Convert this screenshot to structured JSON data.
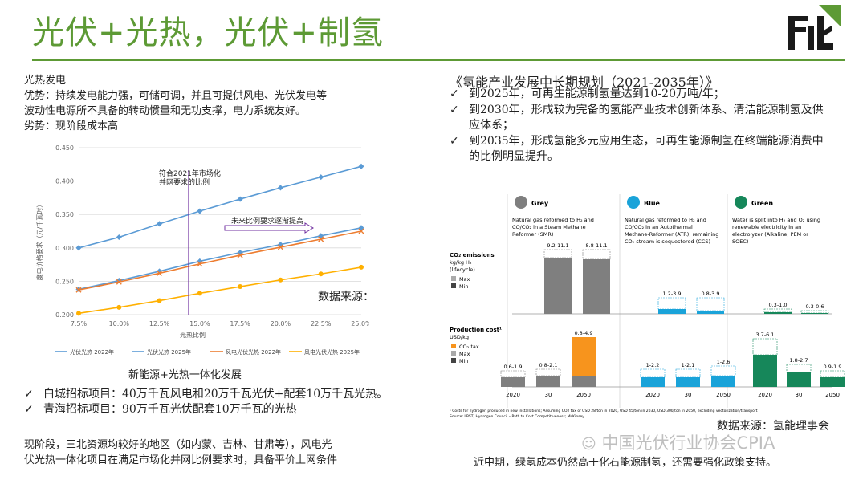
{
  "header": {
    "title": "光伏+光热，光伏+制氢"
  },
  "left": {
    "section_title": "光热发电",
    "advantage": "优势：持续发电能力强，可储可调，并且可提供风电、光伏发电等",
    "advantage2": "波动性电源所不具备的转动惯量和无功支撑，电力系统友好。",
    "disadvantage": "劣势：现阶段成本高",
    "chart_caption": "新能源+光热一体化发展",
    "bullets": [
      "白城招标项目：40万千瓦风电和20万千瓦光伏+配套10万千瓦光热。",
      "青海招标项目：90万千瓦光伏配套10万千瓦的光热"
    ],
    "conclusion1": "现阶段，三北资源均较好的地区（如内蒙、吉林、甘肃等），风电光",
    "conclusion2": "伏光热一体化项目在满足市场化并网比例要求时，具备平价上网条件"
  },
  "chart_data": {
    "type": "line",
    "xlabel": "光热比例",
    "ylabel": "度电价格要求（元/千瓦时）",
    "x": [
      "7.5%",
      "10.0%",
      "12.5%",
      "15.0%",
      "17.5%",
      "20.0%",
      "22.5%",
      "25.0%"
    ],
    "yticks": [
      "0.200",
      "0.250",
      "0.300",
      "0.350",
      "0.400",
      "0.450"
    ],
    "ylim": [
      0.2,
      0.45
    ],
    "series": [
      {
        "name": "光伏光热 2022年",
        "color": "#5b9bd5",
        "values": [
          0.3,
          0.316,
          0.336,
          0.355,
          0.373,
          0.39,
          0.406,
          0.422
        ]
      },
      {
        "name": "光伏光热 2025年",
        "color": "#5b9bd5",
        "values": [
          0.238,
          0.251,
          0.265,
          0.28,
          0.293,
          0.305,
          0.318,
          0.33
        ]
      },
      {
        "name": "风电光伏光热 2022年",
        "color": "#ed7d31",
        "values": [
          0.237,
          0.249,
          0.262,
          0.276,
          0.289,
          0.301,
          0.313,
          0.325
        ]
      },
      {
        "name": "风电光伏光热 2025年",
        "color": "#ffb000",
        "values": [
          0.202,
          0.211,
          0.221,
          0.232,
          0.242,
          0.252,
          0.261,
          0.271
        ]
      }
    ],
    "annotations": {
      "vline_label1": "符合2021年市场化",
      "vline_label2": "并网要求的比例",
      "arrow_label": "未来比例要求逐渐提高",
      "source": "数据来源：能源所"
    },
    "grid": true,
    "legend": "bottom"
  },
  "right": {
    "heading": "《氢能产业发展中长期规划（2021-2035年）》",
    "bullets": [
      {
        "line1": "到2025年，可再生能源制氢量达到10-20万吨/年；",
        "line2": ""
      },
      {
        "line1": "到2030年，形成较为完备的氢能产业技术创新体系、清洁能源制氢及供",
        "line2": "应体系；"
      },
      {
        "line1": "到2035年，形成氢能多元应用生态，可再生能源制氢在终端能源消费中",
        "line2": "的比例明显提升。"
      }
    ],
    "source": "数据来源：氢能理事会",
    "conclusion": "近中期，绿氢成本仍然高于化石能源制氢，还需要强化政策支持。",
    "watermark": "中国光伏行业协会CPIA"
  },
  "h2_figure": {
    "columns": [
      {
        "name": "Grey",
        "desc": [
          "Natural gas reformed to H₂ and",
          "CO/CO₂ in a Steam Methane",
          "Reformer (SMR)"
        ],
        "color": "#7f7f7f"
      },
      {
        "name": "Blue",
        "desc": [
          "Natural gas reformed to H₂ and",
          "CO/CO₂ in an Autothermal",
          "Methane-Reformer (ATR); remaining",
          "CO₂ stream is sequestered (CCS)"
        ],
        "color": "#1aa3d9"
      },
      {
        "name": "Green",
        "desc": [
          "Water is split into H₂ and O₂ using",
          "renewable electricity in an",
          "electrolyzer (Alkaline, PEM or",
          "SOEC)"
        ],
        "color": "#16875a"
      }
    ],
    "emissions_label": [
      "CO₂ emissions",
      "kg/kg H₂",
      "(lifecycle)"
    ],
    "emissions_legend": [
      "Max",
      "Min"
    ],
    "emissions_values": [
      "9.2-11.1",
      "8.8-11.1",
      "1.2-3.9",
      "0.8-3.9",
      "0.3-1.0",
      "0.3-0.6"
    ],
    "cost_label": [
      "Production cost¹",
      "USD/kg"
    ],
    "cost_legend": [
      "CO₂ tax",
      "Max",
      "Min"
    ],
    "cost_values": [
      "0.6-1.9",
      "0.8-2.1",
      "0.8-4.9",
      "1-2.2",
      "1-2.1",
      "1-2.6",
      "3.7-6.1",
      "1.8-2.7",
      "0.9-1.9"
    ],
    "years": [
      "2020",
      "30",
      "2050"
    ],
    "footnote1": "¹ Costs for hydrogen produced in new installations; Assuming CO2 tax of USD 28/ton in 2020, USD 45/ton in 2030, USD 300/ton in 2050, excluding vectorization/transport",
    "footnote2": "Source: LBST; Hydrogen Council – Path to Cost Competitiveness; McKinsey"
  }
}
